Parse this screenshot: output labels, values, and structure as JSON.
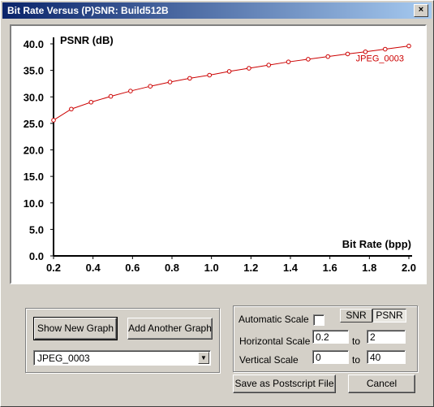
{
  "window": {
    "title": "Bit Rate Versus (P)SNR: Build512B",
    "close_glyph": "×"
  },
  "chart_data": {
    "type": "line",
    "ylabel": "PSNR (dB)",
    "xlabel": "Bit Rate (bpp)",
    "xlim": [
      0.2,
      2.0
    ],
    "ylim": [
      0,
      40
    ],
    "x_ticks": [
      "0.2",
      "0.4",
      "0.6",
      "0.8",
      "1.0",
      "1.2",
      "1.4",
      "1.6",
      "1.8",
      "2.0"
    ],
    "y_ticks": [
      "0.0",
      "5.0",
      "10.0",
      "15.0",
      "20.0",
      "25.0",
      "30.0",
      "35.0",
      "40.0"
    ],
    "grid": false,
    "series": [
      {
        "name": "JPEG_0003",
        "color": "#cc0000",
        "x": [
          0.2,
          0.29,
          0.39,
          0.49,
          0.59,
          0.69,
          0.79,
          0.89,
          0.99,
          1.09,
          1.19,
          1.29,
          1.39,
          1.49,
          1.59,
          1.69,
          1.78,
          1.88,
          2.0
        ],
        "y": [
          25.6,
          27.7,
          29.0,
          30.1,
          31.1,
          32.0,
          32.8,
          33.5,
          34.1,
          34.8,
          35.4,
          36.0,
          36.6,
          37.1,
          37.6,
          38.1,
          38.5,
          39.0,
          39.6
        ]
      }
    ]
  },
  "controls": {
    "show_new_graph": "Show New Graph",
    "add_another_graph": "Add Another Graph",
    "graph_select": "JPEG_0003",
    "automatic_scale_label": "Automatic Scale",
    "automatic_scale_checked": false,
    "snr_label": "SNR",
    "psnr_label": "PSNR",
    "psnr_selected": true,
    "horizontal_scale_label": "Horizontal Scale",
    "h_from": "0.2",
    "h_to": "2",
    "vertical_scale_label": "Vertical Scale",
    "v_from": "0",
    "v_to": "40",
    "to_label": "to",
    "save_postscript": "Save as Postscript File",
    "cancel": "Cancel"
  }
}
